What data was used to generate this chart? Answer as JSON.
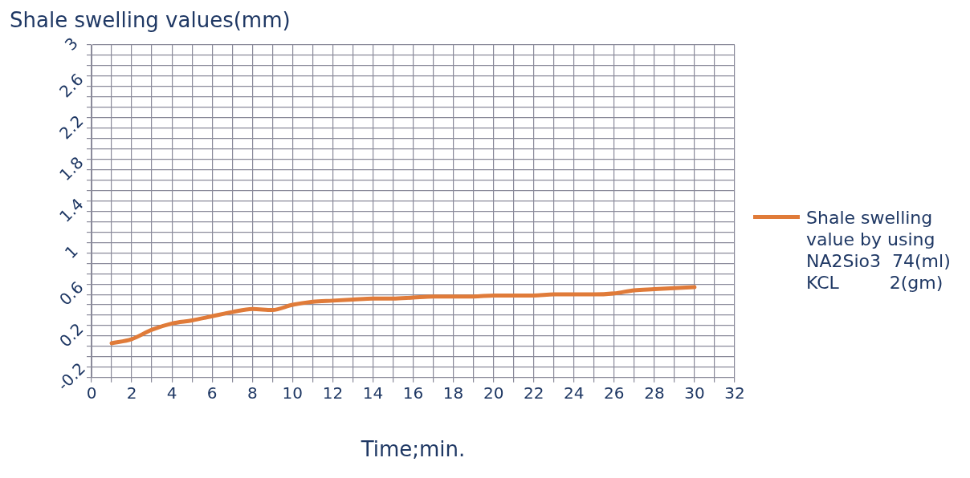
{
  "chart_data": {
    "type": "line",
    "xlabel": "Time;min.",
    "ylabel": "Shale swelling values(mm)",
    "x": [
      1,
      2,
      3,
      4,
      5,
      6,
      7,
      8,
      9,
      10,
      11,
      12,
      13,
      14,
      15,
      16,
      17,
      18,
      19,
      20,
      21,
      22,
      23,
      24,
      25,
      26,
      27,
      28,
      29,
      30
    ],
    "series": [
      {
        "name": "Shale swelling\nvalue by using\nNA2Sio3  74(ml)\nKCL         2(gm)",
        "color": "#e07b39",
        "values": [
          0.13,
          0.17,
          0.26,
          0.32,
          0.35,
          0.39,
          0.43,
          0.46,
          0.45,
          0.5,
          0.53,
          0.54,
          0.55,
          0.56,
          0.56,
          0.57,
          0.58,
          0.58,
          0.58,
          0.59,
          0.59,
          0.59,
          0.6,
          0.6,
          0.6,
          0.61,
          0.64,
          0.65,
          0.66,
          0.67
        ]
      }
    ],
    "xlim": [
      0,
      32
    ],
    "xticks": [
      0,
      {
        "value": 1,
        "label": null
      },
      2,
      {
        "value": 3,
        "label": null
      },
      4,
      {
        "value": 5,
        "label": null
      },
      6,
      {
        "value": 7,
        "label": null
      },
      8,
      {
        "value": 9,
        "label": null
      },
      10,
      {
        "value": 11,
        "label": null
      },
      12,
      {
        "value": 13,
        "label": null
      },
      14,
      {
        "value": 15,
        "label": null
      },
      16,
      {
        "value": 17,
        "label": null
      },
      18,
      {
        "value": 19,
        "label": null
      },
      20,
      {
        "value": 21,
        "label": null
      },
      22,
      {
        "value": 23,
        "label": null
      },
      24,
      {
        "value": 25,
        "label": null
      },
      26,
      {
        "value": 27,
        "label": null
      },
      28,
      {
        "value": 29,
        "label": null
      },
      30,
      {
        "value": 31,
        "label": null
      },
      32
    ],
    "ylim": [
      -0.2,
      3
    ],
    "yticks": [
      -0.2,
      {
        "value": -0.1,
        "label": null
      },
      {
        "value": 0,
        "label": null
      },
      {
        "value": 0.1,
        "label": null
      },
      0.2,
      {
        "value": 0.3,
        "label": null
      },
      {
        "value": 0.4,
        "label": null
      },
      {
        "value": 0.5,
        "label": null
      },
      0.6,
      {
        "value": 0.7,
        "label": null
      },
      {
        "value": 0.8,
        "label": null
      },
      {
        "value": 0.9,
        "label": null
      },
      1,
      {
        "value": 1.1,
        "label": null
      },
      {
        "value": 1.2,
        "label": null
      },
      {
        "value": 1.3,
        "label": null
      },
      1.4,
      {
        "value": 1.5,
        "label": null
      },
      {
        "value": 1.6,
        "label": null
      },
      {
        "value": 1.7,
        "label": null
      },
      1.8,
      {
        "value": 1.9,
        "label": null
      },
      {
        "value": 2,
        "label": null
      },
      {
        "value": 2.1,
        "label": null
      },
      2.2,
      {
        "value": 2.3,
        "label": null
      },
      {
        "value": 2.4,
        "label": null
      },
      {
        "value": 2.5,
        "label": null
      },
      2.6,
      {
        "value": 2.7,
        "label": null
      },
      {
        "value": 2.8,
        "label": null
      },
      {
        "value": 2.9,
        "label": null
      },
      3
    ],
    "grid": true,
    "legend": "right",
    "marker": "none",
    "line_style": "solid"
  }
}
